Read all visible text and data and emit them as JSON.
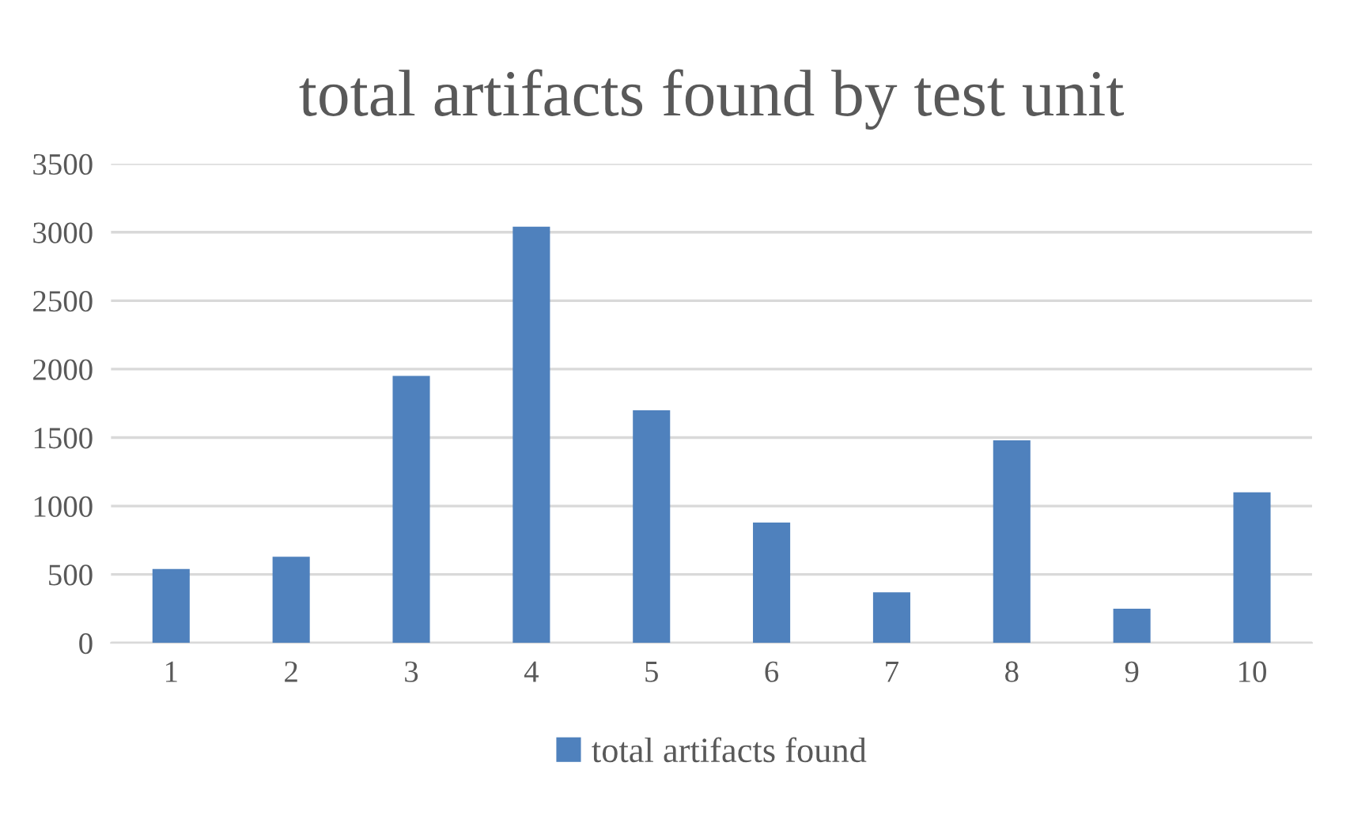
{
  "chart_data": {
    "type": "bar",
    "title": "total artifacts found by test unit",
    "categories": [
      "1",
      "2",
      "3",
      "4",
      "5",
      "6",
      "7",
      "8",
      "9",
      "10"
    ],
    "series": [
      {
        "name": "total artifacts found",
        "color": "#4f81bd",
        "values": [
          540,
          630,
          1950,
          3040,
          1700,
          880,
          370,
          1480,
          250,
          1100
        ]
      }
    ],
    "ylim": [
      0,
      3500
    ],
    "yticks": [
      0,
      500,
      1000,
      1500,
      2000,
      2500,
      3000,
      3500
    ],
    "grid": "y",
    "legend": "bottom"
  }
}
